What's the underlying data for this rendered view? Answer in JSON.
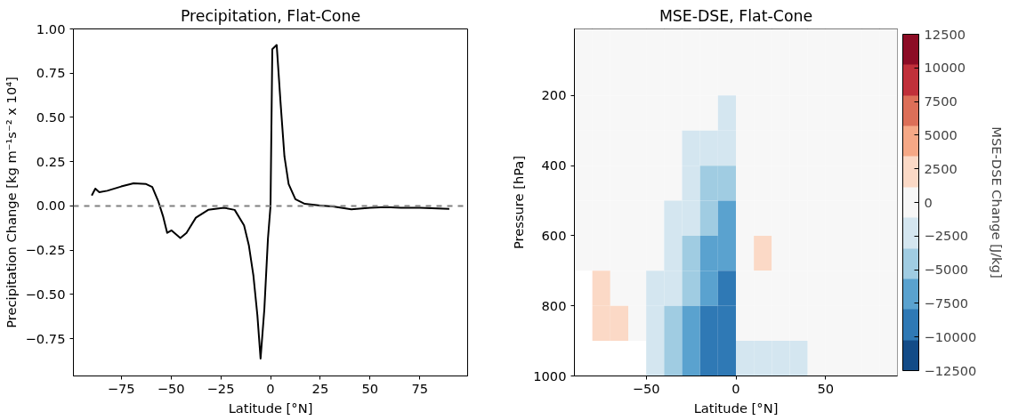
{
  "chart_data": [
    {
      "type": "line",
      "title": "Precipitation, Flat-Cone",
      "xlabel": "Latitude [°N]",
      "ylabel": "Precipitation Change [kg m⁻¹s⁻² x 10⁴]",
      "xlim": [
        -99,
        99
      ],
      "ylim": [
        -0.96,
        1.0
      ],
      "xticks": [
        {
          "value": -75,
          "label": "−75"
        },
        {
          "value": -50,
          "label": "−50"
        },
        {
          "value": -25,
          "label": "−25"
        },
        0,
        25,
        50,
        75
      ],
      "yticks": [
        {
          "value": -0.75,
          "label": "−0.75"
        },
        {
          "value": -0.5,
          "label": "−0.50"
        },
        {
          "value": -0.25,
          "label": "−0.25"
        },
        {
          "value": 0,
          "label": "0.00"
        },
        {
          "value": 0.25,
          "label": "0.25"
        },
        {
          "value": 0.5,
          "label": "0.50"
        },
        {
          "value": 0.75,
          "label": "0.75"
        },
        {
          "value": 1.0,
          "label": "1.00"
        }
      ],
      "grid": false,
      "ref_lines": [
        {
          "axis": "y",
          "value": 0,
          "color": "#808080",
          "line_style": "dashed"
        }
      ],
      "series": [
        {
          "color": "#000000",
          "line_style": "solid",
          "x": [
            -89.8,
            -88,
            -86,
            -82,
            -75,
            -68.8,
            -62.5,
            -59.4,
            -56.3,
            -54,
            -51.9,
            -49.7,
            -45.3,
            -42.2,
            -37.5,
            -31.3,
            -23.4,
            -18,
            -13.3,
            -10.9,
            -8.6,
            -6.6,
            -5,
            -3.1,
            -1.3,
            0,
            0.9,
            3.1,
            5,
            7,
            9.1,
            12.5,
            17.2,
            25,
            31.3,
            40.6,
            50,
            57.8,
            65.6,
            75,
            89.8
          ],
          "values": [
            0.059,
            0.098,
            0.078,
            0.086,
            0.11,
            0.128,
            0.124,
            0.107,
            0.024,
            -0.057,
            -0.152,
            -0.138,
            -0.181,
            -0.152,
            -0.066,
            -0.022,
            -0.01,
            -0.022,
            -0.109,
            -0.221,
            -0.393,
            -0.617,
            -0.862,
            -0.583,
            -0.186,
            0,
            0.886,
            0.909,
            0.59,
            0.279,
            0.124,
            0.038,
            0.012,
            0.003,
            -0.003,
            -0.019,
            -0.01,
            -0.007,
            -0.01,
            -0.01,
            -0.016
          ]
        }
      ]
    },
    {
      "type": "heatmap",
      "title": "MSE-DSE, Flat-Cone",
      "xlabel": "Latitude [°N]",
      "ylabel": "Pressure [hPa]",
      "clabel": "MSE-DSE Change [J/kg]",
      "xlim": [
        -90,
        90
      ],
      "ylim": [
        1000,
        10
      ],
      "xticks": [
        {
          "value": -50,
          "label": "−50"
        },
        0,
        50
      ],
      "yticks": [
        200,
        400,
        600,
        800,
        1000
      ],
      "x": [
        -85,
        -75,
        -65,
        -55,
        -45,
        -35,
        -25,
        -15,
        -5,
        5,
        15,
        25,
        35,
        45,
        55,
        65,
        75,
        85
      ],
      "y": [
        50,
        150,
        250,
        350,
        450,
        550,
        650,
        750,
        850,
        950
      ],
      "clim": [
        -12500,
        12500
      ],
      "cticks": [
        {
          "value": -12500,
          "label": "−12500"
        },
        {
          "value": -10000,
          "label": "−10000"
        },
        {
          "value": -7500,
          "label": "−7500"
        },
        {
          "value": -5000,
          "label": "−5000"
        },
        {
          "value": -2500,
          "label": "−2500"
        },
        0,
        2500,
        5000,
        7500,
        10000,
        12500
      ],
      "colors": [
        "#134b87",
        "#2f79b5",
        "#5aa2cf",
        "#a0cce2",
        "#d4e6f0",
        "#f7f7f7",
        "#fbd9c6",
        "#f5a886",
        "#dc6f58",
        "#c0303a",
        "#8c0c25"
      ],
      "cells": [
        [
          0,
          0,
          0,
          0,
          0,
          0,
          0,
          0,
          0,
          0,
          0,
          0,
          0,
          0,
          0,
          0,
          0,
          0
        ],
        [
          0,
          0,
          0,
          0,
          0,
          0,
          0,
          0,
          0,
          0,
          0,
          0,
          0,
          0,
          0,
          0,
          0,
          0
        ],
        [
          0,
          0,
          0,
          0,
          0,
          0,
          0,
          0,
          -2500,
          0,
          0,
          0,
          0,
          0,
          0,
          0,
          0,
          0
        ],
        [
          0,
          0,
          0,
          0,
          0,
          0,
          -2500,
          -2500,
          -2500,
          0,
          0,
          0,
          0,
          0,
          0,
          0,
          0,
          0
        ],
        [
          0,
          0,
          0,
          0,
          0,
          0,
          -2500,
          -4500,
          -4500,
          0,
          0,
          0,
          0,
          0,
          0,
          0,
          0,
          0
        ],
        [
          0,
          0,
          0,
          0,
          0,
          -2500,
          -2500,
          -4500,
          -7000,
          0,
          0,
          0,
          0,
          0,
          0,
          0,
          0,
          0
        ],
        [
          0,
          0,
          0,
          0,
          0,
          -2500,
          -4500,
          -7000,
          -7000,
          0,
          2500,
          0,
          0,
          0,
          0,
          0,
          0,
          0
        ],
        [
          null,
          2500,
          0,
          0,
          -2500,
          -2500,
          -4500,
          -7000,
          -9000,
          0,
          0,
          0,
          0,
          0,
          0,
          0,
          0,
          0
        ],
        [
          null,
          2500,
          2500,
          0,
          -2500,
          -4500,
          -7000,
          -9000,
          -9000,
          0,
          0,
          0,
          0,
          0,
          0,
          0,
          0,
          0
        ],
        [
          null,
          null,
          null,
          null,
          -2500,
          -4500,
          -7000,
          -9000,
          -9000,
          -2500,
          -2500,
          -2500,
          -2500,
          0,
          0,
          0,
          0,
          0
        ]
      ]
    }
  ]
}
